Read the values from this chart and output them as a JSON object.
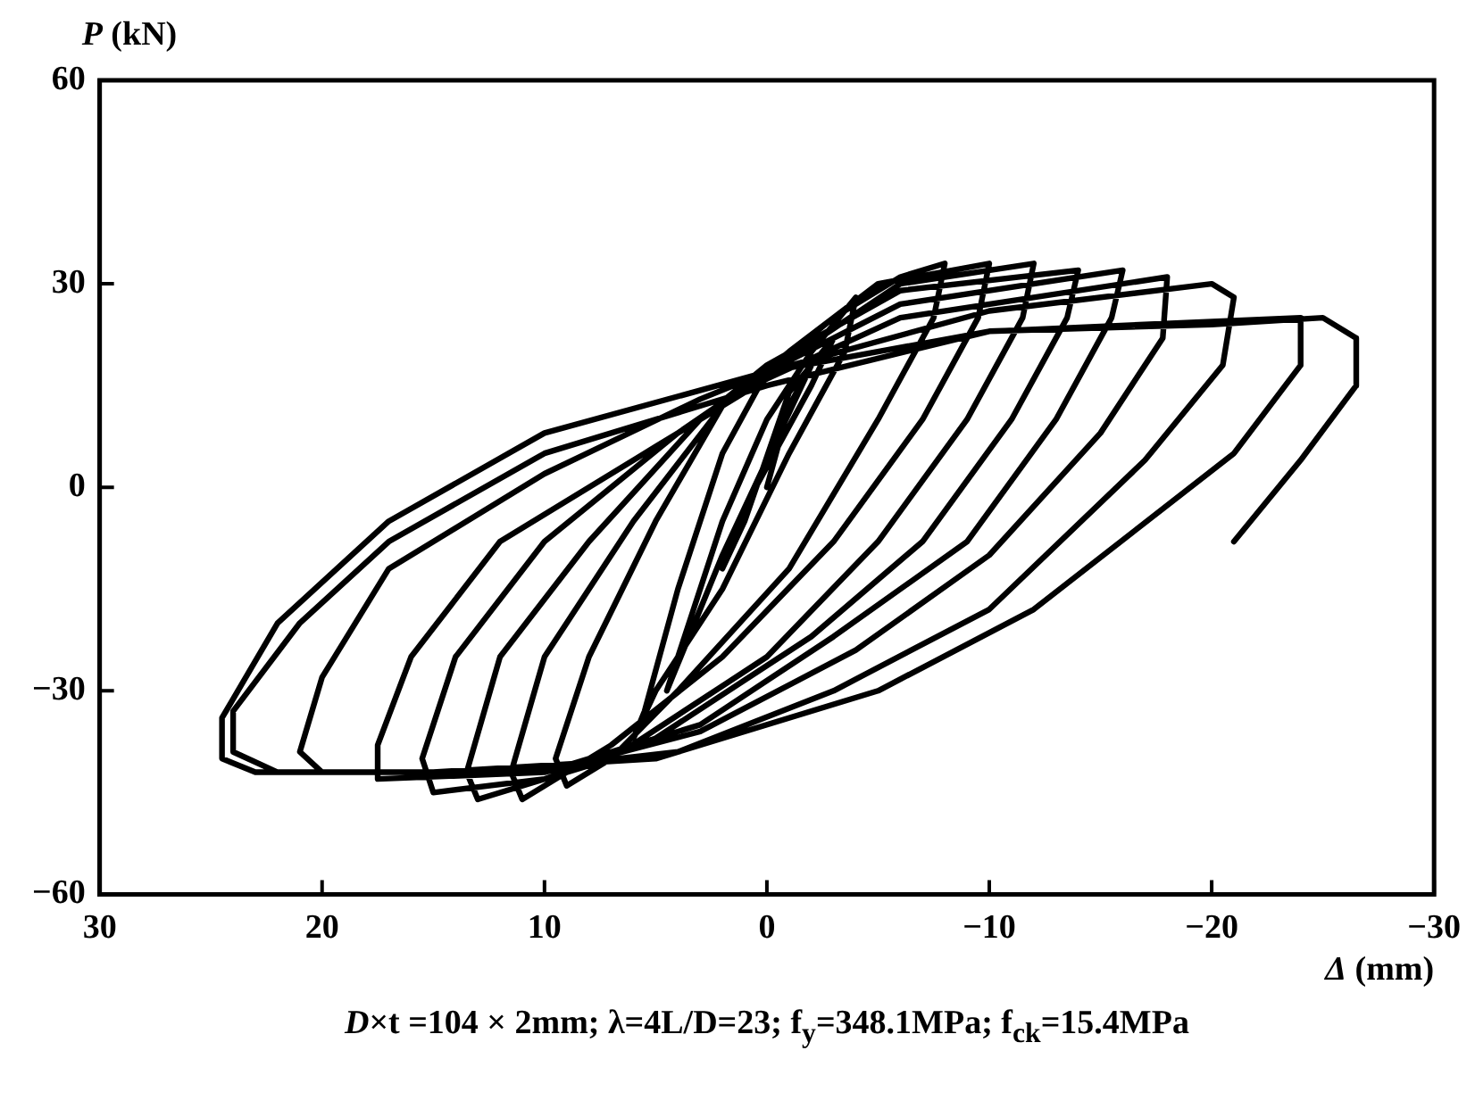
{
  "chart_data": {
    "type": "line",
    "xlabel": "Δ (mm)",
    "ylabel": "P (kN)",
    "annotations": [
      "D×t =104 × 2mm;  λ=4L/D=23; f$_{y}$=348.1MPa; f$_{ck}$=15.4MPa"
    ],
    "xlim": [
      30,
      -30
    ],
    "ylim": [
      -60,
      60
    ],
    "xticks": [
      30,
      20,
      10,
      0,
      {
        "value": -10,
        "label": "−10"
      },
      {
        "value": -20,
        "label": "−20"
      },
      {
        "value": -30,
        "label": "−30"
      }
    ],
    "yticks": [
      {
        "value": -60,
        "label": "−60"
      },
      {
        "value": -30,
        "label": "−30"
      },
      0,
      30,
      60
    ],
    "grid": false,
    "legend": false,
    "marker": "none",
    "line_style": "solid",
    "series": [
      {
        "color": "#000000",
        "x": [
          0,
          -1,
          -2,
          -1,
          1,
          2,
          1,
          -2,
          -3,
          -2,
          2,
          4.5,
          4,
          2,
          0,
          -2,
          -4,
          -3.5,
          -1,
          2,
          5,
          6,
          5.5,
          4,
          2,
          0,
          -3,
          -6,
          -8,
          -7.5,
          -5,
          -1,
          4,
          7,
          9,
          9.5,
          8,
          5,
          2,
          -1,
          -5,
          -10,
          -9.5,
          -7,
          -3,
          2,
          7,
          11,
          11.5,
          10,
          6,
          2,
          -1,
          -6,
          -12,
          -11.5,
          -9,
          -5,
          0,
          7,
          13,
          13.5,
          12,
          8,
          3,
          0,
          -6,
          -14,
          -13.5,
          -11,
          -7,
          -2,
          5,
          10,
          15,
          15.5,
          14,
          10,
          4,
          0,
          -6,
          -16,
          -15.5,
          -13,
          -9,
          -3,
          3,
          10,
          17.5,
          17.5,
          16,
          12,
          5,
          0,
          -6,
          -18,
          -17.8,
          -15,
          -10,
          -4,
          3,
          10,
          20,
          21,
          20,
          17,
          10,
          3,
          0,
          -10,
          -20,
          -21,
          -20.5,
          -17,
          -10,
          -3,
          4,
          12,
          22,
          24,
          24,
          21,
          17,
          10,
          0,
          -10,
          -24,
          -24,
          -21,
          -12,
          -5,
          5,
          15,
          23,
          24.5,
          24.5,
          22,
          17,
          10,
          0,
          -10,
          -20,
          -25,
          -26.5,
          -26.5,
          -24,
          -21
        ],
        "values": [
          0,
          12,
          18,
          14,
          -5,
          -12,
          -3,
          15,
          22,
          18,
          -10,
          -30,
          -25,
          -5,
          10,
          20,
          28,
          20,
          5,
          -15,
          -30,
          -37,
          -33,
          -15,
          5,
          17,
          25,
          31,
          33,
          25,
          10,
          -12,
          -30,
          -40,
          -44,
          -40,
          -25,
          -5,
          12,
          20,
          30,
          33,
          25,
          10,
          -8,
          -25,
          -38,
          -46,
          -42,
          -25,
          -5,
          12,
          19,
          30,
          33,
          25,
          10,
          -8,
          -25,
          -40,
          -46,
          -42,
          -25,
          -8,
          10,
          18,
          29,
          32,
          25,
          10,
          -8,
          -22,
          -37,
          -43,
          -45,
          -40,
          -25,
          -8,
          8,
          17,
          27,
          32,
          25,
          10,
          -8,
          -22,
          -35,
          -42,
          -43,
          -38,
          -25,
          -8,
          6,
          16,
          25,
          31,
          22,
          8,
          -10,
          -24,
          -36,
          -42,
          -42,
          -39,
          -28,
          -12,
          2,
          13,
          17,
          26,
          30,
          28,
          18,
          4,
          -18,
          -30,
          -39,
          -42,
          -42,
          -39,
          -33,
          -20,
          -8,
          5,
          15,
          23,
          25,
          18,
          5,
          -18,
          -30,
          -40,
          -42,
          -42,
          -40,
          -34,
          -20,
          -5,
          8,
          17,
          23,
          24,
          25,
          22,
          15,
          4,
          -8
        ]
      }
    ]
  }
}
